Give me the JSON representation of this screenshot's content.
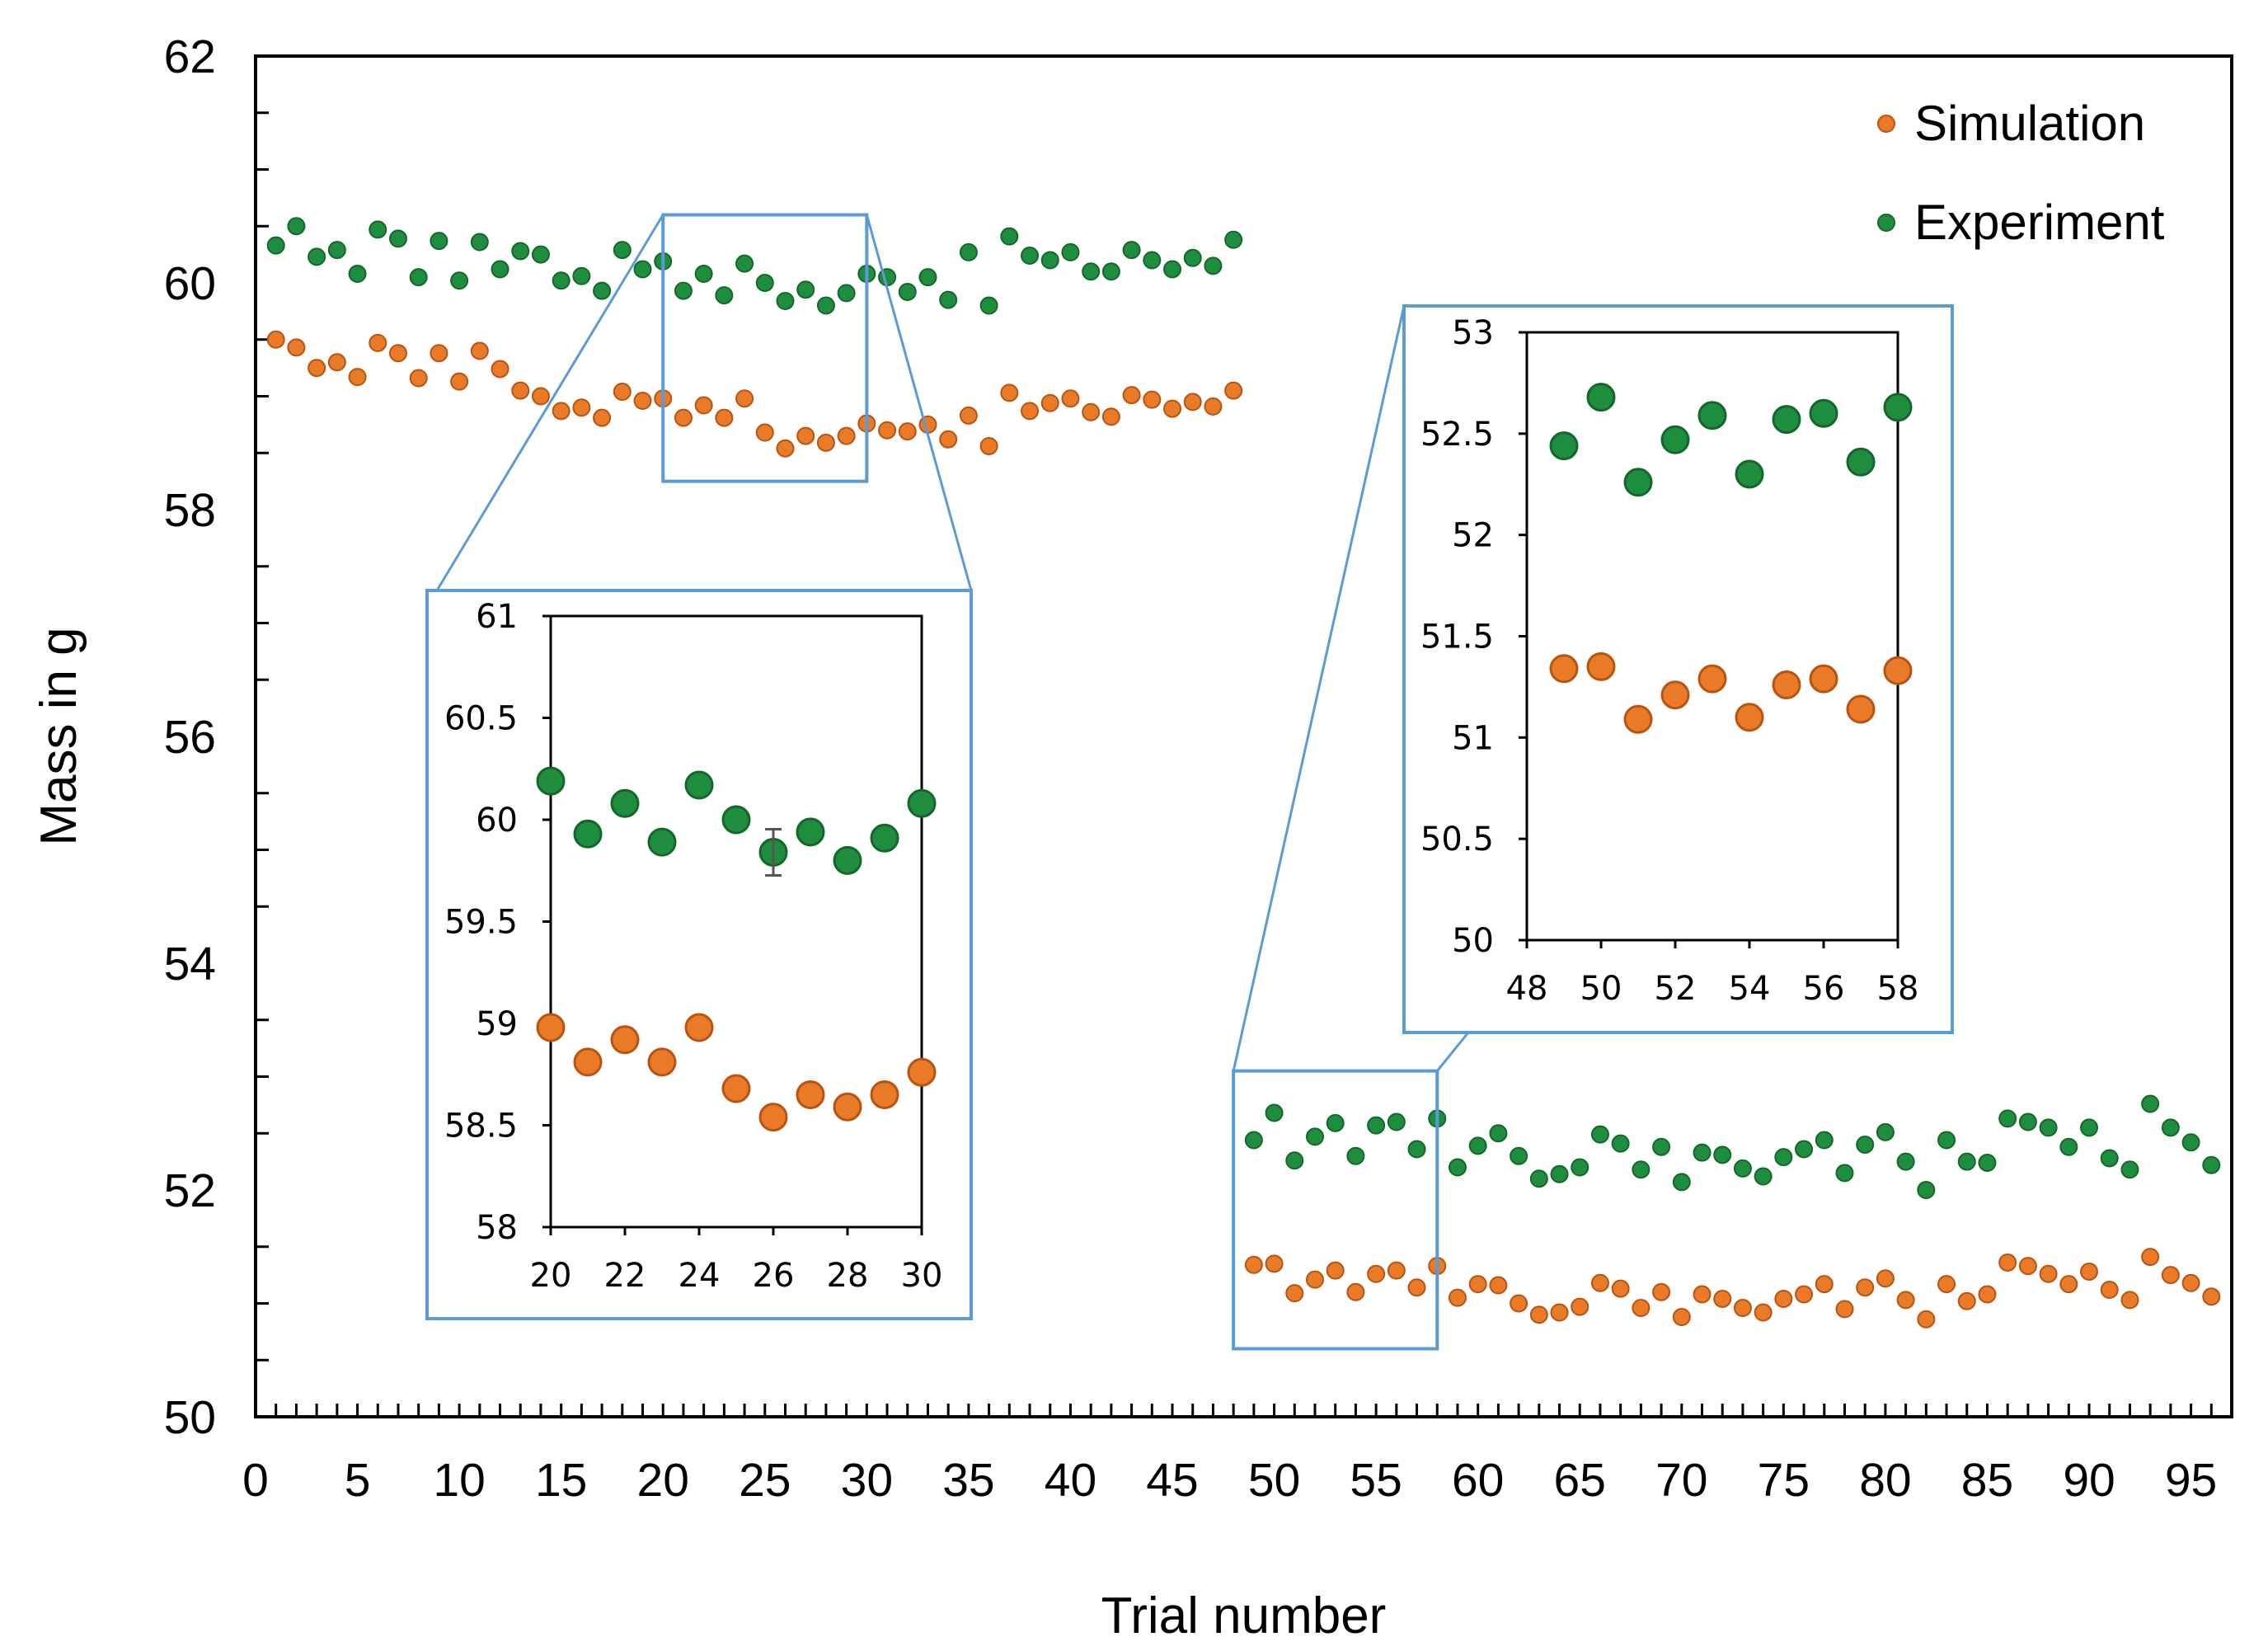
{
  "chart_data": [
    {
      "id": "main",
      "type": "scatter",
      "title": "",
      "xlabel": "Trial number",
      "ylabel": "Mass in g",
      "xlim": [
        0,
        97
      ],
      "ylim": [
        50,
        62
      ],
      "xticks": [
        0,
        5,
        10,
        15,
        20,
        25,
        30,
        35,
        40,
        45,
        50,
        55,
        60,
        65,
        70,
        75,
        80,
        85,
        90,
        95
      ],
      "yticks": [
        50,
        52,
        54,
        56,
        58,
        60,
        62
      ],
      "xtick_labels": [
        "0",
        "5",
        "10",
        "15",
        "20",
        "25",
        "30",
        "35",
        "40",
        "45",
        "50",
        "55",
        "60",
        "65",
        "70",
        "75",
        "80",
        "85",
        "90",
        "95"
      ],
      "ytick_labels": [
        "50",
        "52",
        "54",
        "56",
        "58",
        "60",
        "62"
      ],
      "grid": false,
      "legend": "top-right",
      "series": [
        {
          "name": "Simulation",
          "color": "#E87A28",
          "x": [
            1,
            2,
            3,
            4,
            5,
            6,
            7,
            8,
            9,
            10,
            11,
            12,
            13,
            14,
            15,
            16,
            17,
            18,
            19,
            20,
            21,
            22,
            23,
            24,
            25,
            26,
            27,
            28,
            29,
            30,
            31,
            32,
            33,
            34,
            35,
            36,
            37,
            38,
            39,
            40,
            41,
            42,
            43,
            44,
            45,
            46,
            47,
            48,
            49,
            50,
            51,
            52,
            53,
            54,
            55,
            56,
            57,
            58,
            59,
            60,
            61,
            62,
            63,
            64,
            65,
            66,
            67,
            68,
            69,
            70,
            71,
            72,
            73,
            74,
            75,
            76,
            77,
            78,
            79,
            80,
            81,
            82,
            83,
            84,
            85,
            86,
            87,
            88,
            89,
            90,
            91,
            92,
            93,
            94,
            95,
            96
          ],
          "y": [
            59.5,
            59.43,
            59.25,
            59.3,
            59.17,
            59.47,
            59.38,
            59.16,
            59.38,
            59.13,
            59.4,
            59.24,
            59.05,
            59.0,
            58.87,
            58.9,
            58.81,
            59.04,
            58.96,
            58.98,
            58.81,
            58.92,
            58.81,
            58.98,
            58.68,
            58.54,
            58.65,
            58.59,
            58.65,
            58.76,
            58.7,
            58.69,
            58.75,
            58.62,
            58.83,
            58.56,
            59.03,
            58.87,
            58.94,
            58.98,
            58.86,
            58.82,
            59.01,
            58.97,
            58.89,
            58.95,
            58.91,
            59.05,
            51.34,
            51.35,
            51.09,
            51.21,
            51.29,
            51.1,
            51.26,
            51.29,
            51.14,
            51.33,
            51.05,
            51.17,
            51.16,
            51.0,
            50.9,
            50.92,
            50.97,
            51.18,
            51.13,
            50.96,
            51.1,
            50.88,
            51.08,
            51.04,
            50.96,
            50.92,
            51.04,
            51.08,
            51.17,
            50.95,
            51.14,
            51.22,
            51.03,
            50.86,
            51.17,
            51.02,
            51.08,
            51.36,
            51.33,
            51.26,
            51.17,
            51.28,
            51.12,
            51.03,
            51.41,
            51.25,
            51.18,
            51.06
          ]
        },
        {
          "name": "Experiment",
          "color": "#1E8E3E",
          "x": [
            1,
            2,
            3,
            4,
            5,
            6,
            7,
            8,
            9,
            10,
            11,
            12,
            13,
            14,
            15,
            16,
            17,
            18,
            19,
            20,
            21,
            22,
            23,
            24,
            25,
            26,
            27,
            28,
            29,
            30,
            31,
            32,
            33,
            34,
            35,
            36,
            37,
            38,
            39,
            40,
            41,
            42,
            43,
            44,
            45,
            46,
            47,
            48,
            49,
            50,
            51,
            52,
            53,
            54,
            55,
            56,
            57,
            58,
            59,
            60,
            61,
            62,
            63,
            64,
            65,
            66,
            67,
            68,
            69,
            70,
            71,
            72,
            73,
            74,
            75,
            76,
            77,
            78,
            79,
            80,
            81,
            82,
            83,
            84,
            85,
            86,
            87,
            88,
            89,
            90,
            91,
            92,
            93,
            94,
            95,
            96
          ],
          "y": [
            60.33,
            60.5,
            60.23,
            60.29,
            60.08,
            60.47,
            60.39,
            60.05,
            60.37,
            60.02,
            60.36,
            60.12,
            60.28,
            60.25,
            60.02,
            60.06,
            59.93,
            60.29,
            60.12,
            60.19,
            59.93,
            60.08,
            59.89,
            60.17,
            60.0,
            59.84,
            59.94,
            59.8,
            59.91,
            60.08,
            60.05,
            59.92,
            60.05,
            59.85,
            60.27,
            59.8,
            60.41,
            60.24,
            60.2,
            60.27,
            60.1,
            60.1,
            60.29,
            60.2,
            60.12,
            60.22,
            60.15,
            60.38,
            52.44,
            52.68,
            52.26,
            52.47,
            52.59,
            52.3,
            52.57,
            52.6,
            52.36,
            52.63,
            52.2,
            52.39,
            52.5,
            52.3,
            52.1,
            52.14,
            52.2,
            52.49,
            52.41,
            52.18,
            52.38,
            52.07,
            52.33,
            52.31,
            52.19,
            52.12,
            52.29,
            52.36,
            52.44,
            52.15,
            52.4,
            52.51,
            52.25,
            52.0,
            52.44,
            52.25,
            52.24,
            52.63,
            52.6,
            52.55,
            52.38,
            52.55,
            52.28,
            52.18,
            52.76,
            52.55,
            52.42,
            52.22
          ]
        }
      ]
    },
    {
      "id": "inset-left",
      "type": "scatter",
      "title": "",
      "xlabel": "",
      "ylabel": "",
      "xlim": [
        20,
        30
      ],
      "ylim": [
        58,
        61
      ],
      "xticks": [
        20,
        22,
        24,
        26,
        28,
        30
      ],
      "yticks": [
        58,
        58.5,
        59,
        59.5,
        60,
        60.5,
        61
      ],
      "xtick_labels": [
        "20",
        "22",
        "24",
        "26",
        "28",
        "30"
      ],
      "ytick_labels": [
        "58",
        "58.5",
        "59",
        "59.5",
        "60",
        "60.5",
        "61"
      ],
      "grid": false,
      "series": [
        {
          "name": "Simulation",
          "x": [
            20,
            21,
            22,
            23,
            24,
            25,
            26,
            27,
            28,
            29,
            30
          ],
          "y": [
            58.98,
            58.81,
            58.92,
            58.81,
            58.98,
            58.68,
            58.54,
            58.65,
            58.59,
            58.65,
            58.76
          ]
        },
        {
          "name": "Experiment",
          "x": [
            20,
            21,
            22,
            23,
            24,
            25,
            26,
            27,
            28,
            29,
            30
          ],
          "y": [
            60.19,
            59.93,
            60.08,
            59.89,
            60.17,
            60.0,
            59.84,
            59.94,
            59.8,
            59.91,
            60.08
          ]
        }
      ]
    },
    {
      "id": "inset-right",
      "type": "scatter",
      "title": "",
      "xlabel": "",
      "ylabel": "",
      "xlim": [
        48,
        58
      ],
      "ylim": [
        50,
        53
      ],
      "xticks": [
        48,
        50,
        52,
        54,
        56,
        58
      ],
      "yticks": [
        50,
        50.5,
        51,
        51.5,
        52,
        52.5,
        53
      ],
      "xtick_labels": [
        "48",
        "50",
        "52",
        "54",
        "56",
        "58"
      ],
      "ytick_labels": [
        "50",
        "50.5",
        "51",
        "51.5",
        "52",
        "52.5",
        "53"
      ],
      "grid": false,
      "series": [
        {
          "name": "Simulation",
          "x": [
            49,
            50,
            51,
            52,
            53,
            54,
            55,
            56,
            57,
            58
          ],
          "y": [
            51.34,
            51.35,
            51.09,
            51.21,
            51.29,
            51.1,
            51.26,
            51.29,
            51.14,
            51.33
          ]
        },
        {
          "name": "Experiment",
          "x": [
            49,
            50,
            51,
            52,
            53,
            54,
            55,
            56,
            57,
            58
          ],
          "y": [
            52.44,
            52.68,
            52.26,
            52.47,
            52.59,
            52.3,
            52.57,
            52.6,
            52.36,
            52.63
          ]
        }
      ]
    }
  ],
  "legend": {
    "simulation_label": "Simulation",
    "experiment_label": "Experiment"
  },
  "zoom_regions": [
    {
      "x_range": [
        20,
        30
      ],
      "y_range": [
        58.25,
        60.6
      ]
    },
    {
      "x_range": [
        48,
        58
      ],
      "y_range": [
        50.6,
        53.05
      ]
    }
  ],
  "colors": {
    "simulation_fill": "#E87A28",
    "simulation_edge": "#B85410",
    "experiment_fill": "#1E8E3E",
    "experiment_edge": "#14672B",
    "zoom_frame": "#5B9BD5",
    "axis": "#000000"
  }
}
